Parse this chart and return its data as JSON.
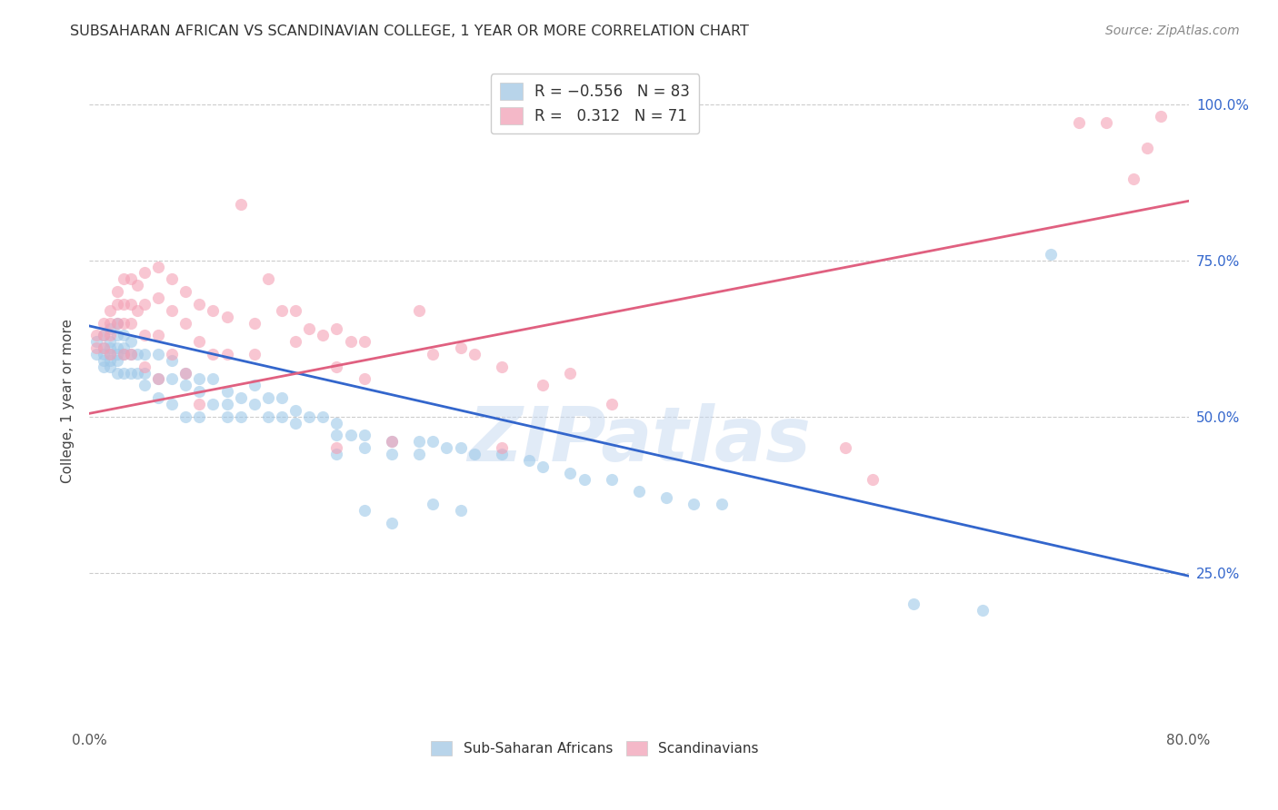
{
  "title": "SUBSAHARAN AFRICAN VS SCANDINAVIAN COLLEGE, 1 YEAR OR MORE CORRELATION CHART",
  "source": "Source: ZipAtlas.com",
  "ylabel": "College, 1 year or more",
  "xlim": [
    0.0,
    0.8
  ],
  "ylim": [
    0.0,
    1.05
  ],
  "ytick_positions": [
    0.25,
    0.5,
    0.75,
    1.0
  ],
  "ytick_labels": [
    "25.0%",
    "50.0%",
    "75.0%",
    "100.0%"
  ],
  "xtick_positions": [
    0.0,
    0.8
  ],
  "xtick_labels": [
    "0.0%",
    "80.0%"
  ],
  "blue_scatter": [
    [
      0.005,
      0.6
    ],
    [
      0.005,
      0.62
    ],
    [
      0.01,
      0.63
    ],
    [
      0.01,
      0.61
    ],
    [
      0.01,
      0.6
    ],
    [
      0.01,
      0.59
    ],
    [
      0.01,
      0.58
    ],
    [
      0.015,
      0.64
    ],
    [
      0.015,
      0.62
    ],
    [
      0.015,
      0.61
    ],
    [
      0.015,
      0.6
    ],
    [
      0.015,
      0.59
    ],
    [
      0.015,
      0.58
    ],
    [
      0.02,
      0.65
    ],
    [
      0.02,
      0.63
    ],
    [
      0.02,
      0.61
    ],
    [
      0.02,
      0.6
    ],
    [
      0.02,
      0.59
    ],
    [
      0.02,
      0.57
    ],
    [
      0.025,
      0.63
    ],
    [
      0.025,
      0.61
    ],
    [
      0.025,
      0.6
    ],
    [
      0.025,
      0.57
    ],
    [
      0.03,
      0.62
    ],
    [
      0.03,
      0.6
    ],
    [
      0.03,
      0.57
    ],
    [
      0.035,
      0.6
    ],
    [
      0.035,
      0.57
    ],
    [
      0.04,
      0.6
    ],
    [
      0.04,
      0.57
    ],
    [
      0.04,
      0.55
    ],
    [
      0.05,
      0.6
    ],
    [
      0.05,
      0.56
    ],
    [
      0.05,
      0.53
    ],
    [
      0.06,
      0.59
    ],
    [
      0.06,
      0.56
    ],
    [
      0.06,
      0.52
    ],
    [
      0.07,
      0.57
    ],
    [
      0.07,
      0.55
    ],
    [
      0.07,
      0.5
    ],
    [
      0.08,
      0.56
    ],
    [
      0.08,
      0.54
    ],
    [
      0.08,
      0.5
    ],
    [
      0.09,
      0.56
    ],
    [
      0.09,
      0.52
    ],
    [
      0.1,
      0.54
    ],
    [
      0.1,
      0.52
    ],
    [
      0.1,
      0.5
    ],
    [
      0.11,
      0.53
    ],
    [
      0.11,
      0.5
    ],
    [
      0.12,
      0.55
    ],
    [
      0.12,
      0.52
    ],
    [
      0.13,
      0.53
    ],
    [
      0.13,
      0.5
    ],
    [
      0.14,
      0.53
    ],
    [
      0.14,
      0.5
    ],
    [
      0.15,
      0.51
    ],
    [
      0.15,
      0.49
    ],
    [
      0.16,
      0.5
    ],
    [
      0.17,
      0.5
    ],
    [
      0.18,
      0.49
    ],
    [
      0.18,
      0.47
    ],
    [
      0.18,
      0.44
    ],
    [
      0.19,
      0.47
    ],
    [
      0.2,
      0.47
    ],
    [
      0.2,
      0.45
    ],
    [
      0.22,
      0.46
    ],
    [
      0.22,
      0.44
    ],
    [
      0.24,
      0.46
    ],
    [
      0.24,
      0.44
    ],
    [
      0.25,
      0.46
    ],
    [
      0.26,
      0.45
    ],
    [
      0.27,
      0.45
    ],
    [
      0.28,
      0.44
    ],
    [
      0.3,
      0.44
    ],
    [
      0.32,
      0.43
    ],
    [
      0.33,
      0.42
    ],
    [
      0.35,
      0.41
    ],
    [
      0.36,
      0.4
    ],
    [
      0.38,
      0.4
    ],
    [
      0.4,
      0.38
    ],
    [
      0.42,
      0.37
    ],
    [
      0.44,
      0.36
    ],
    [
      0.46,
      0.36
    ],
    [
      0.2,
      0.35
    ],
    [
      0.22,
      0.33
    ],
    [
      0.25,
      0.36
    ],
    [
      0.27,
      0.35
    ],
    [
      0.6,
      0.2
    ],
    [
      0.65,
      0.19
    ],
    [
      0.7,
      0.76
    ]
  ],
  "pink_scatter": [
    [
      0.005,
      0.63
    ],
    [
      0.005,
      0.61
    ],
    [
      0.01,
      0.65
    ],
    [
      0.01,
      0.63
    ],
    [
      0.01,
      0.61
    ],
    [
      0.015,
      0.67
    ],
    [
      0.015,
      0.65
    ],
    [
      0.015,
      0.63
    ],
    [
      0.015,
      0.6
    ],
    [
      0.02,
      0.7
    ],
    [
      0.02,
      0.68
    ],
    [
      0.02,
      0.65
    ],
    [
      0.025,
      0.72
    ],
    [
      0.025,
      0.68
    ],
    [
      0.025,
      0.65
    ],
    [
      0.025,
      0.6
    ],
    [
      0.03,
      0.72
    ],
    [
      0.03,
      0.68
    ],
    [
      0.03,
      0.65
    ],
    [
      0.03,
      0.6
    ],
    [
      0.035,
      0.71
    ],
    [
      0.035,
      0.67
    ],
    [
      0.04,
      0.73
    ],
    [
      0.04,
      0.68
    ],
    [
      0.04,
      0.63
    ],
    [
      0.04,
      0.58
    ],
    [
      0.05,
      0.74
    ],
    [
      0.05,
      0.69
    ],
    [
      0.05,
      0.63
    ],
    [
      0.05,
      0.56
    ],
    [
      0.06,
      0.72
    ],
    [
      0.06,
      0.67
    ],
    [
      0.06,
      0.6
    ],
    [
      0.07,
      0.7
    ],
    [
      0.07,
      0.65
    ],
    [
      0.07,
      0.57
    ],
    [
      0.08,
      0.68
    ],
    [
      0.08,
      0.62
    ],
    [
      0.08,
      0.52
    ],
    [
      0.09,
      0.67
    ],
    [
      0.09,
      0.6
    ],
    [
      0.1,
      0.66
    ],
    [
      0.1,
      0.6
    ],
    [
      0.11,
      0.84
    ],
    [
      0.12,
      0.65
    ],
    [
      0.12,
      0.6
    ],
    [
      0.13,
      0.72
    ],
    [
      0.14,
      0.67
    ],
    [
      0.15,
      0.67
    ],
    [
      0.15,
      0.62
    ],
    [
      0.16,
      0.64
    ],
    [
      0.17,
      0.63
    ],
    [
      0.18,
      0.64
    ],
    [
      0.18,
      0.58
    ],
    [
      0.18,
      0.45
    ],
    [
      0.19,
      0.62
    ],
    [
      0.2,
      0.62
    ],
    [
      0.2,
      0.56
    ],
    [
      0.22,
      0.46
    ],
    [
      0.24,
      0.67
    ],
    [
      0.25,
      0.6
    ],
    [
      0.27,
      0.61
    ],
    [
      0.28,
      0.6
    ],
    [
      0.3,
      0.58
    ],
    [
      0.3,
      0.45
    ],
    [
      0.33,
      0.55
    ],
    [
      0.35,
      0.57
    ],
    [
      0.38,
      0.52
    ],
    [
      0.55,
      0.45
    ],
    [
      0.57,
      0.4
    ],
    [
      0.72,
      0.97
    ],
    [
      0.74,
      0.97
    ],
    [
      0.76,
      0.88
    ],
    [
      0.77,
      0.93
    ],
    [
      0.78,
      0.98
    ]
  ],
  "blue_line_x": [
    0.0,
    0.8
  ],
  "blue_line_y": [
    0.645,
    0.245
  ],
  "pink_line_x": [
    0.0,
    0.8
  ],
  "pink_line_y": [
    0.505,
    0.845
  ],
  "blue_dot_color": "#9ec8e8",
  "pink_dot_color": "#f4a0b5",
  "blue_line_color": "#3366cc",
  "pink_line_color": "#e06080",
  "legend_blue_color": "#b8d4ea",
  "legend_pink_color": "#f4b8c8",
  "watermark_text": "ZIPatlas",
  "watermark_color": "#c5d8f0",
  "bg_color": "#ffffff",
  "grid_color": "#cccccc",
  "right_label_color": "#3366cc",
  "title_color": "#333333",
  "source_color": "#888888"
}
